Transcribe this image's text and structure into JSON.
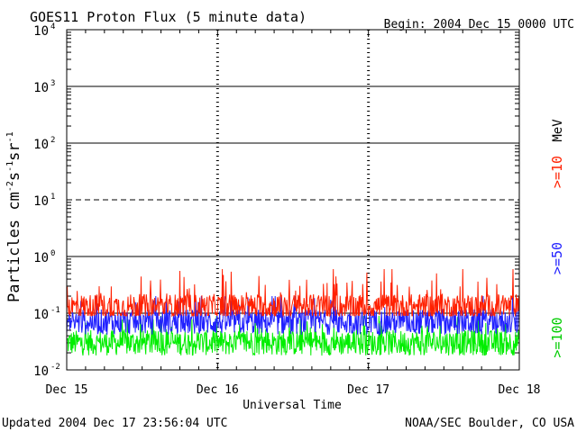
{
  "chart_data": {
    "type": "line",
    "title": "GOES11 Proton Flux (5 minute data)",
    "begin_label": "Begin: 2004 Dec 15 0000 UTC",
    "xlabel": "Universal Time",
    "ylabel_main": "Particles cm",
    "ylabel_sup1": "-2",
    "ylabel_mid1": "s",
    "ylabel_sup2": "-1",
    "ylabel_mid2": "sr",
    "ylabel_sup3": "-1",
    "categories": [
      "Dec 15",
      "Dec 16",
      "Dec 17",
      "Dec 18"
    ],
    "x_range": [
      "2004-12-15",
      "2004-12-18"
    ],
    "y_scale": "log",
    "ylim": [
      0.01,
      10000
    ],
    "y_ticks": [
      {
        "value": 0.01,
        "base": "10",
        "exp": "-2"
      },
      {
        "value": 0.1,
        "base": "10",
        "exp": "-1"
      },
      {
        "value": 1,
        "base": "10",
        "exp": "0"
      },
      {
        "value": 10,
        "base": "10",
        "exp": "1"
      },
      {
        "value": 100,
        "base": "10",
        "exp": "2"
      },
      {
        "value": 1000,
        "base": "10",
        "exp": "3"
      },
      {
        "value": 10000,
        "base": "10",
        "exp": "4"
      }
    ],
    "threshold_levels": [
      0.1,
      1,
      10,
      100,
      1000
    ],
    "series": [
      {
        "name": ">=10",
        "unit": "MeV",
        "color": "#ff2000",
        "baseline": 0.13,
        "min": 0.09,
        "max": 0.6
      },
      {
        "name": ">=50",
        "color": "#2020ff",
        "baseline": 0.07,
        "min": 0.035,
        "max": 0.2
      },
      {
        "name": ">=100",
        "color": "#00ee00",
        "baseline": 0.03,
        "min": 0.015,
        "max": 0.09
      }
    ],
    "unit_label": "MeV"
  },
  "footer": {
    "updated": "Updated 2004 Dec 17 23:56:04 UTC",
    "source": "NOAA/SEC Boulder, CO USA"
  }
}
